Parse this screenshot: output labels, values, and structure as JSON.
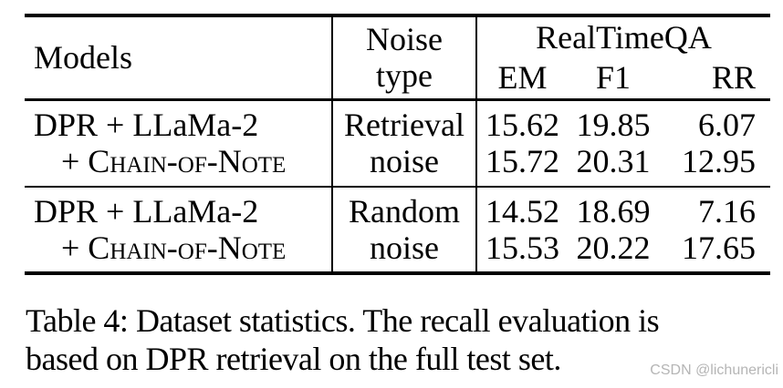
{
  "table": {
    "header": {
      "models": "Models",
      "noise_line1": "Noise",
      "noise_line2": "type",
      "group": "RealTimeQA",
      "col_em": "EM",
      "col_f1": "F1",
      "col_rr": "RR"
    },
    "rows": [
      {
        "model_line1": "DPR + LLaMa-2",
        "model_line2": "+ Chain-of-Note",
        "noise_line1": "Retrieval",
        "noise_line2": "noise",
        "em_line1": "15.62",
        "em_line2": "15.72",
        "f1_line1": "19.85",
        "f1_line2": "20.31",
        "rr_line1": "6.07",
        "rr_line2": "12.95"
      },
      {
        "model_line1": "DPR + LLaMa-2",
        "model_line2": "+ Chain-of-Note",
        "noise_line1": "Random",
        "noise_line2": "noise",
        "em_line1": "14.52",
        "em_line2": "15.53",
        "f1_line1": "18.69",
        "f1_line2": "20.22",
        "rr_line1": "7.16",
        "rr_line2": "17.65"
      }
    ]
  },
  "caption": {
    "line1": "Table 4: Dataset statistics. The recall evaluation is",
    "line2": "based on DPR retrieval on the full test set."
  },
  "watermark": "CSDN @lichunericli",
  "colors": {
    "text": "#000000",
    "background": "#ffffff",
    "rule": "#000000",
    "watermark": "#b5b5b5"
  }
}
